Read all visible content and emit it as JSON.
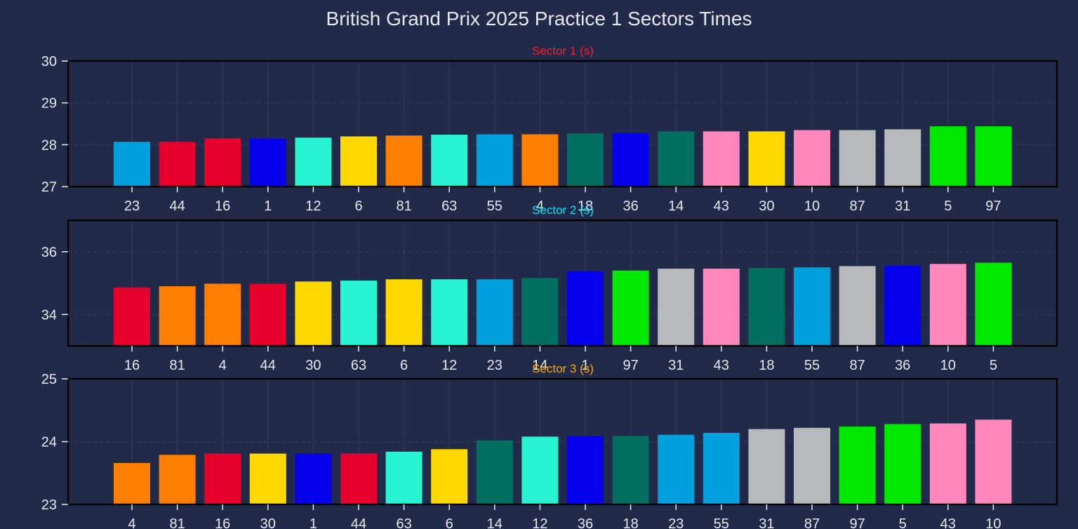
{
  "title": "British Grand Prix 2025 Practice 1 Sectors Times",
  "colors": {
    "background": "#222a49",
    "text": "#e6e8ef",
    "frame": "#000000",
    "grid": "#2f3a60"
  },
  "chart_data": [
    {
      "type": "bar",
      "title": "Sector 1 (s)",
      "title_color": "#ff1a2e",
      "categories": [
        "23",
        "44",
        "16",
        "1",
        "12",
        "6",
        "81",
        "63",
        "55",
        "4",
        "18",
        "36",
        "14",
        "43",
        "30",
        "10",
        "87",
        "31",
        "5",
        "97"
      ],
      "values": [
        28.07,
        28.07,
        28.15,
        28.15,
        28.17,
        28.2,
        28.22,
        28.24,
        28.25,
        28.25,
        28.27,
        28.28,
        28.32,
        28.32,
        28.32,
        28.35,
        28.35,
        28.37,
        28.44,
        28.44
      ],
      "colors": [
        "#00a0de",
        "#e8002d",
        "#e8002d",
        "#0600ef",
        "#27f4d2",
        "#ffd800",
        "#ff8000",
        "#27f4d2",
        "#00a0de",
        "#ff8000",
        "#006f62",
        "#0600ef",
        "#006f62",
        "#ff87bc",
        "#ffd800",
        "#ff87bc",
        "#b6babd",
        "#b6babd",
        "#00e701",
        "#00e701"
      ],
      "ylim": [
        27,
        30
      ],
      "yticks": [
        27,
        28,
        29,
        30
      ],
      "grid": true
    },
    {
      "type": "bar",
      "title": "Sector 2 (s)",
      "title_color": "#00e5ff",
      "categories": [
        "16",
        "81",
        "4",
        "44",
        "30",
        "63",
        "6",
        "12",
        "23",
        "14",
        "1",
        "97",
        "31",
        "43",
        "18",
        "55",
        "87",
        "36",
        "10",
        "5"
      ],
      "values": [
        34.86,
        34.9,
        34.98,
        34.98,
        35.05,
        35.08,
        35.12,
        35.12,
        35.12,
        35.16,
        35.38,
        35.4,
        35.46,
        35.46,
        35.48,
        35.5,
        35.54,
        35.56,
        35.61,
        35.65
      ],
      "colors": [
        "#e8002d",
        "#ff8000",
        "#ff8000",
        "#e8002d",
        "#ffd800",
        "#27f4d2",
        "#ffd800",
        "#27f4d2",
        "#00a0de",
        "#006f62",
        "#0600ef",
        "#00e701",
        "#b6babd",
        "#ff87bc",
        "#006f62",
        "#00a0de",
        "#b6babd",
        "#0600ef",
        "#ff87bc",
        "#00e701"
      ],
      "ylim": [
        33,
        37
      ],
      "yticks": [
        34,
        36
      ],
      "grid": true
    },
    {
      "type": "bar",
      "title": "Sector 3 (s)",
      "title_color": "#ffa500",
      "categories": [
        "4",
        "81",
        "16",
        "30",
        "1",
        "44",
        "63",
        "6",
        "14",
        "12",
        "36",
        "18",
        "23",
        "55",
        "31",
        "87",
        "97",
        "5",
        "43",
        "10"
      ],
      "values": [
        23.66,
        23.79,
        23.81,
        23.81,
        23.81,
        23.81,
        23.84,
        23.88,
        24.02,
        24.08,
        24.09,
        24.09,
        24.11,
        24.14,
        24.2,
        24.22,
        24.24,
        24.28,
        24.29,
        24.35
      ],
      "colors": [
        "#ff8000",
        "#ff8000",
        "#e8002d",
        "#ffd800",
        "#0600ef",
        "#e8002d",
        "#27f4d2",
        "#ffd800",
        "#006f62",
        "#27f4d2",
        "#0600ef",
        "#006f62",
        "#00a0de",
        "#00a0de",
        "#b6babd",
        "#b6babd",
        "#00e701",
        "#00e701",
        "#ff87bc",
        "#ff87bc"
      ],
      "ylim": [
        23,
        25
      ],
      "yticks": [
        23,
        24,
        25
      ],
      "grid": true
    }
  ]
}
